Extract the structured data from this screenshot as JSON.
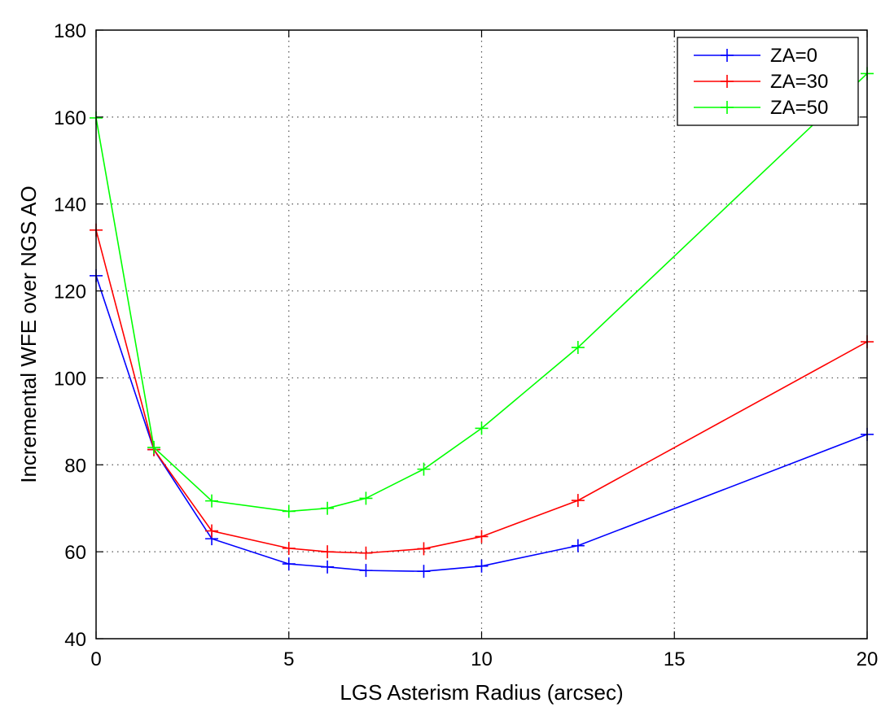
{
  "chart_data": {
    "type": "line",
    "xlabel": "LGS Asterism Radius (arcsec)",
    "ylabel": "Incremental WFE over NGS AO",
    "xlim": [
      0,
      20
    ],
    "ylim": [
      40,
      180
    ],
    "xticks": [
      "0",
      "5",
      "10",
      "15",
      "20"
    ],
    "yticks": [
      "40",
      "60",
      "80",
      "100",
      "120",
      "140",
      "160",
      "180"
    ],
    "grid": true,
    "legend_position": "top-right",
    "x": [
      0,
      1.5,
      3,
      5,
      6,
      7,
      8.5,
      10,
      12.5,
      20
    ],
    "series": [
      {
        "name": "ZA=0",
        "color": "#0000ff",
        "values": [
          123.5,
          83.5,
          63,
          57.2,
          56.5,
          55.7,
          55.5,
          56.7,
          61.4,
          87
        ]
      },
      {
        "name": "ZA=30",
        "color": "#ff0000",
        "values": [
          134,
          83.5,
          64.8,
          60.8,
          60,
          59.7,
          60.7,
          63.5,
          71.8,
          108.3
        ]
      },
      {
        "name": "ZA=50",
        "color": "#00ff00",
        "values": [
          159.8,
          84,
          71.7,
          69.3,
          70,
          72.3,
          79,
          88.4,
          107,
          170
        ]
      }
    ]
  }
}
